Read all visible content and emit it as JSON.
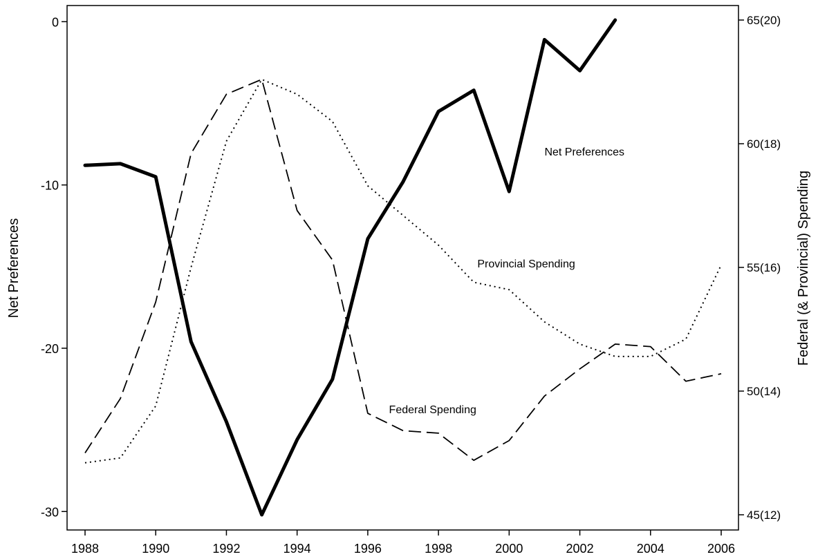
{
  "chart_data": {
    "type": "line",
    "title": "",
    "xlabel": "",
    "ylabel_left": "Net Preferences",
    "ylabel_right": "Federal (& Provincial) Spending",
    "x_ticks": [
      "1988",
      "1990",
      "1992",
      "1994",
      "1996",
      "1998",
      "2000",
      "2002",
      "2004",
      "2006"
    ],
    "left_ticks": [
      {
        "value": 0,
        "label": "0"
      },
      {
        "value": -10,
        "label": "-10"
      },
      {
        "value": -20,
        "label": "-20"
      },
      {
        "value": -30,
        "label": "-30"
      }
    ],
    "right_ticks": [
      {
        "value": 65,
        "label": "65(20)"
      },
      {
        "value": 60,
        "label": "60(18)"
      },
      {
        "value": 55,
        "label": "55(16)"
      },
      {
        "value": 50,
        "label": "50(14)"
      },
      {
        "value": 45,
        "label": "45(12)"
      }
    ],
    "xlim": [
      1988,
      2006
    ],
    "ylim_left": [
      -30.2,
      0.1
    ],
    "ylim_right": [
      45,
      65
    ],
    "series": [
      {
        "name": "Net Preferences",
        "axis": "left",
        "style": "solid",
        "x": [
          1988,
          1989,
          1990,
          1991,
          1992,
          1993,
          1994,
          1995,
          1996,
          1997,
          1998,
          1999,
          2000,
          2001,
          2002,
          2003
        ],
        "y": [
          -8.8,
          -8.7,
          -9.5,
          -19.6,
          -24.5,
          -30.2,
          -25.6,
          -21.9,
          -13.3,
          -9.8,
          -5.5,
          -4.2,
          -10.4,
          -1.1,
          -3.0,
          0.1
        ],
        "label_year": 2001,
        "label_value": -8.2
      },
      {
        "name": "Provincial Spending",
        "axis": "right",
        "style": "dotted",
        "x": [
          1988,
          1989,
          1990,
          1991,
          1992,
          1993,
          1994,
          1995,
          1996,
          1997,
          1998,
          1999,
          2000,
          2001,
          2002,
          2003,
          2004,
          2005,
          2006
        ],
        "y": [
          47.1,
          47.3,
          49.4,
          55.0,
          60.1,
          62.6,
          62.0,
          60.9,
          58.3,
          57.1,
          55.9,
          54.4,
          54.1,
          52.8,
          51.9,
          51.4,
          51.4,
          52.1,
          55.1
        ],
        "label_year": 1999.1,
        "label_value": 55.0
      },
      {
        "name": "Federal Spending",
        "axis": "right",
        "style": "dashed",
        "x": [
          1988,
          1989,
          1990,
          1991,
          1992,
          1993,
          1994,
          1995,
          1996,
          1997,
          1998,
          1999,
          2000,
          2001,
          2002,
          2003,
          2004,
          2005,
          2006
        ],
        "y": [
          47.5,
          49.7,
          53.6,
          59.6,
          62.0,
          62.6,
          57.3,
          55.3,
          49.1,
          48.4,
          48.3,
          47.2,
          48.0,
          49.8,
          50.9,
          51.9,
          51.8,
          50.4,
          50.7
        ],
        "label_year": 1996.6,
        "label_value": 49.1
      }
    ]
  }
}
